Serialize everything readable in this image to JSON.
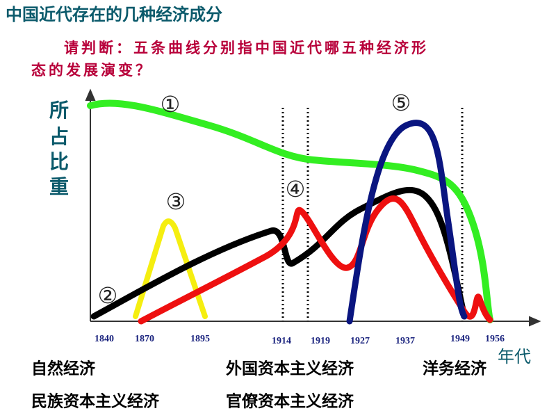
{
  "header": {
    "title": "中国近代存在的几种经济成分",
    "question": [
      "请判断：五条曲线分别指中国近代哪五种经济形",
      "态的发展演变？"
    ]
  },
  "diagram": {
    "y_label": [
      "所",
      "占",
      "比",
      "重"
    ],
    "x_label": "年代",
    "years": [
      "1840",
      "1870",
      "1895",
      "1914",
      "1919",
      "1927",
      "1937",
      "1949",
      "1956"
    ],
    "curve_labels": [
      "①",
      "②",
      "③",
      "④",
      "⑤"
    ]
  },
  "options": [
    "自然经济",
    "外国资本主义经济",
    "洋务经济",
    "民族资本主义经济",
    "官僚资本主义经济"
  ]
}
